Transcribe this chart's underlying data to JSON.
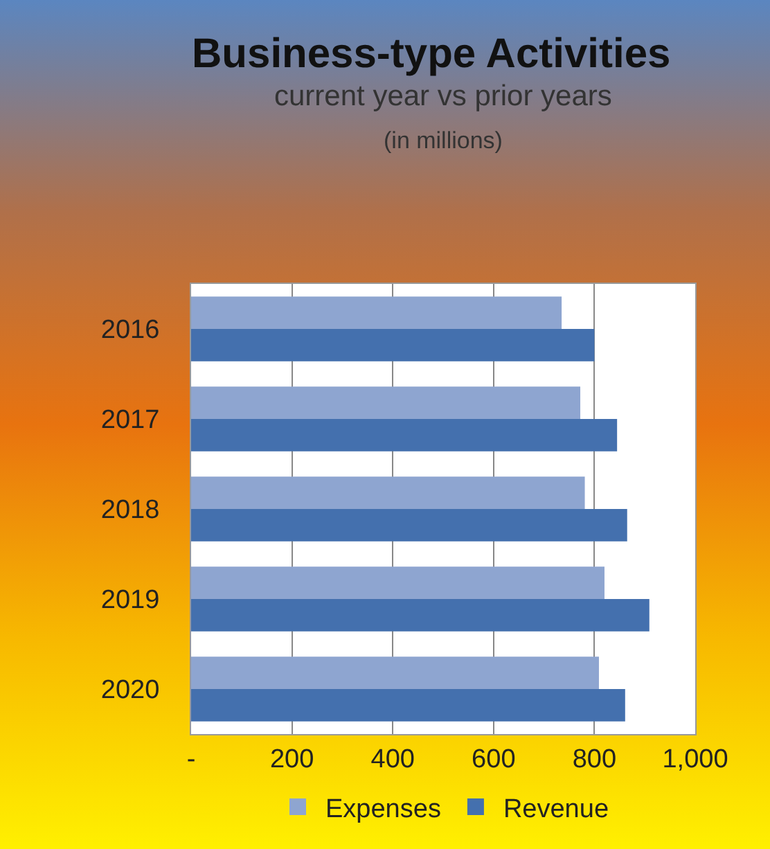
{
  "chart_data": {
    "type": "bar",
    "orientation": "horizontal",
    "title": "Business-type Activities",
    "subtitle": "current year vs prior years",
    "annotations": [
      "(in millions)"
    ],
    "categories": [
      "2016",
      "2017",
      "2018",
      "2019",
      "2020"
    ],
    "series": [
      {
        "name": "Expenses",
        "color": "#8ea5d0",
        "values": [
          735,
          772,
          781,
          820,
          809
        ]
      },
      {
        "name": "Revenue",
        "color": "#4470ae",
        "values": [
          800,
          845,
          865,
          909,
          861
        ]
      }
    ],
    "xlim": [
      0,
      1000
    ],
    "xticks": [
      {
        "value": 0,
        "label": "-"
      },
      200,
      400,
      600,
      800,
      {
        "value": 1000,
        "label": "1,000"
      }
    ],
    "grid": "x",
    "legend": "bottom"
  }
}
